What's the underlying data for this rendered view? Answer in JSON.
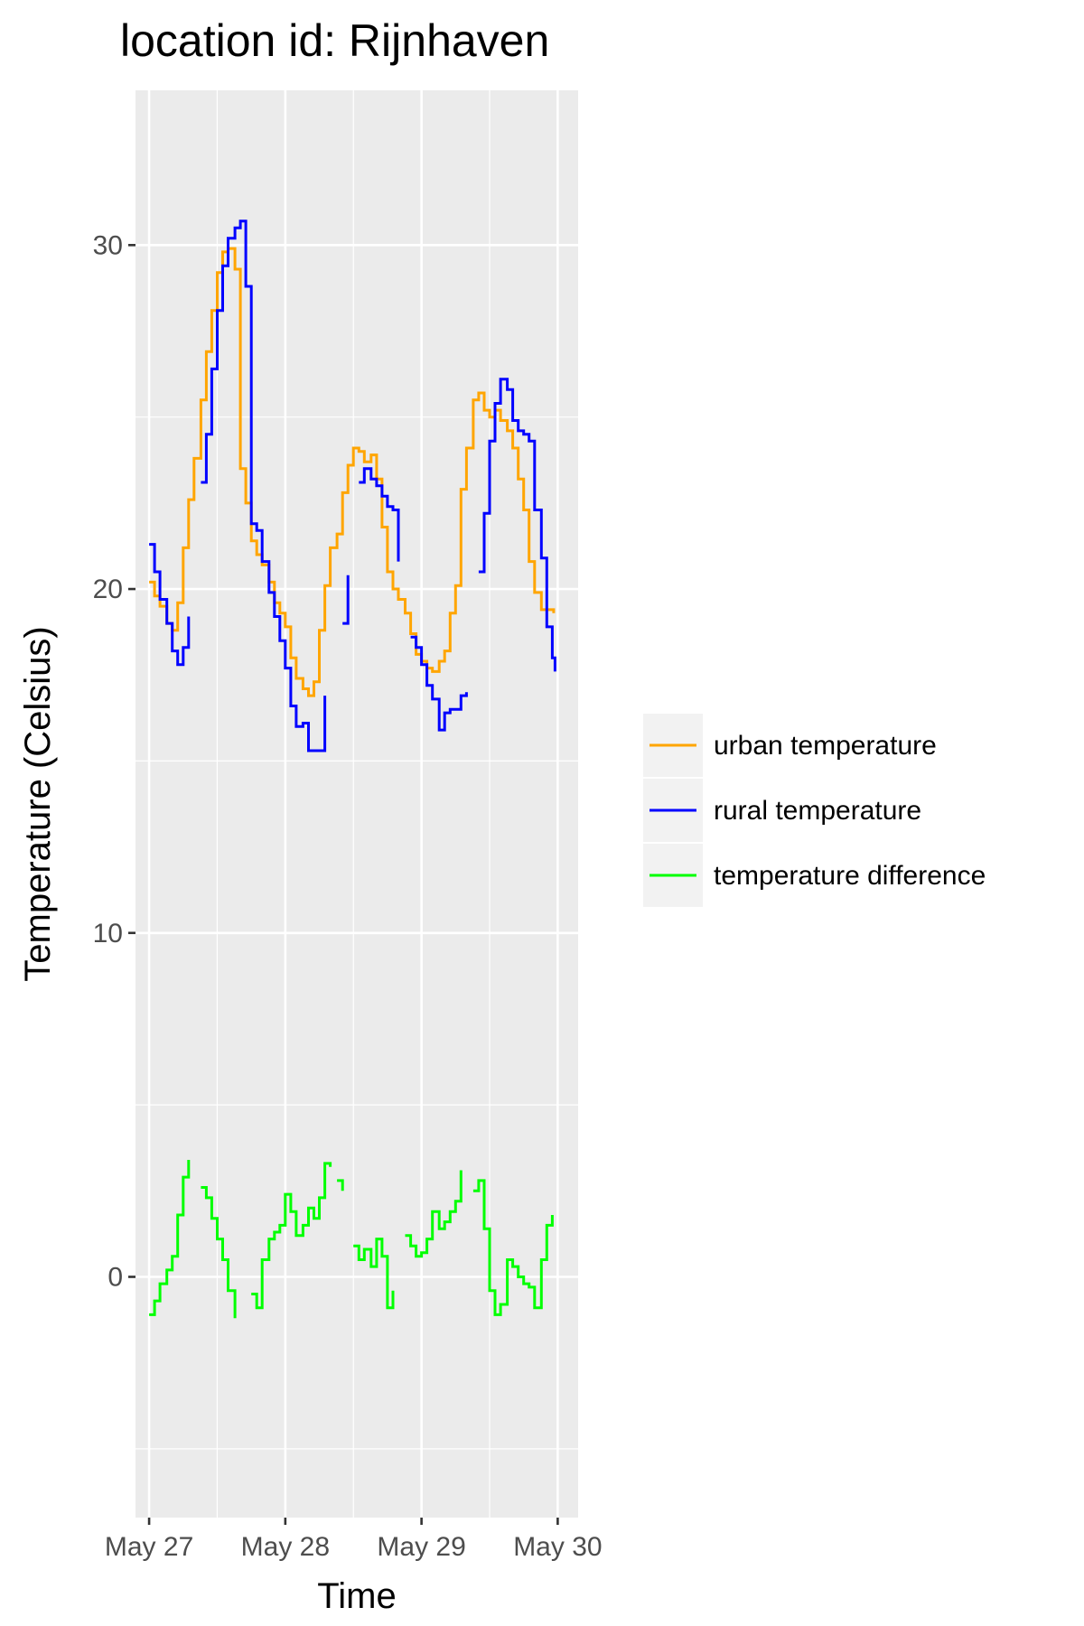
{
  "chart_data": {
    "type": "line",
    "title": "location id: Rijnhaven",
    "xlabel": "Time",
    "ylabel": "Temperature (Celsius)",
    "x_ticks": [
      "May 27",
      "May 28",
      "May 29",
      "May 30"
    ],
    "y_ticks": [
      "0",
      "10",
      "20",
      "30"
    ],
    "xlim": [
      -0.1,
      3.15
    ],
    "ylim": [
      -7,
      34.5
    ],
    "grid": true,
    "legend_position": "right",
    "step": true,
    "series": [
      {
        "name": "urban temperature",
        "color": "#FFA500",
        "points": [
          [
            0.0,
            20.2
          ],
          [
            0.04,
            19.8
          ],
          [
            0.08,
            19.5
          ],
          [
            0.13,
            19.0
          ],
          [
            0.17,
            18.8
          ],
          [
            0.21,
            19.6
          ],
          [
            0.25,
            21.2
          ],
          [
            0.29,
            22.6
          ],
          [
            0.33,
            23.8
          ],
          [
            0.38,
            25.5
          ],
          [
            0.42,
            26.9
          ],
          [
            0.46,
            28.1
          ],
          [
            0.5,
            29.2
          ],
          [
            0.54,
            29.8
          ],
          [
            0.58,
            29.9
          ],
          [
            0.63,
            29.3
          ],
          [
            0.67,
            23.5
          ],
          [
            0.71,
            22.5
          ],
          [
            0.75,
            21.4
          ],
          [
            0.79,
            21.0
          ],
          [
            0.83,
            20.7
          ],
          [
            0.88,
            20.2
          ],
          [
            0.92,
            19.6
          ],
          [
            0.96,
            19.3
          ],
          [
            1.0,
            18.9
          ],
          [
            1.04,
            18.0
          ],
          [
            1.08,
            17.4
          ],
          [
            1.13,
            17.1
          ],
          [
            1.17,
            16.9
          ],
          [
            1.21,
            17.3
          ],
          [
            1.25,
            18.8
          ],
          [
            1.29,
            20.1
          ],
          [
            1.33,
            21.2
          ],
          [
            1.38,
            21.6
          ],
          [
            1.42,
            22.8
          ],
          [
            1.46,
            23.6
          ],
          [
            1.5,
            24.1
          ],
          [
            1.54,
            24.0
          ],
          [
            1.58,
            23.7
          ],
          [
            1.63,
            23.9
          ],
          [
            1.67,
            23.2
          ],
          [
            1.71,
            21.8
          ],
          [
            1.75,
            20.5
          ],
          [
            1.79,
            20.0
          ],
          [
            1.83,
            19.7
          ],
          [
            1.88,
            19.3
          ],
          [
            1.92,
            18.7
          ],
          [
            1.96,
            18.1
          ],
          [
            2.0,
            17.9
          ],
          [
            2.04,
            17.7
          ],
          [
            2.08,
            17.6
          ],
          [
            2.13,
            17.9
          ],
          [
            2.17,
            18.2
          ],
          [
            2.21,
            19.3
          ],
          [
            2.25,
            20.1
          ],
          [
            2.29,
            22.9
          ],
          [
            2.33,
            24.1
          ],
          [
            2.38,
            25.5
          ],
          [
            2.42,
            25.7
          ],
          [
            2.46,
            25.2
          ],
          [
            2.5,
            25.0
          ],
          [
            2.54,
            25.2
          ],
          [
            2.58,
            24.9
          ],
          [
            2.63,
            24.6
          ],
          [
            2.67,
            24.1
          ],
          [
            2.71,
            23.2
          ],
          [
            2.75,
            22.3
          ],
          [
            2.79,
            20.8
          ],
          [
            2.83,
            19.9
          ],
          [
            2.88,
            19.4
          ],
          [
            2.92,
            19.4
          ],
          [
            2.97,
            19.3
          ]
        ]
      },
      {
        "name": "rural temperature",
        "color": "#0000FF",
        "points": [
          [
            0.0,
            21.3
          ],
          [
            0.04,
            20.5
          ],
          [
            0.08,
            19.7
          ],
          [
            0.13,
            19.0
          ],
          [
            0.17,
            18.2
          ],
          [
            0.21,
            17.8
          ],
          [
            0.25,
            18.3
          ],
          [
            0.29,
            19.2
          ],
          null,
          [
            0.38,
            23.1
          ],
          [
            0.42,
            24.5
          ],
          [
            0.46,
            26.4
          ],
          [
            0.5,
            28.1
          ],
          [
            0.54,
            29.4
          ],
          [
            0.58,
            30.2
          ],
          [
            0.63,
            30.5
          ],
          [
            0.67,
            30.7
          ],
          [
            0.71,
            28.8
          ],
          [
            0.75,
            21.9
          ],
          [
            0.79,
            21.7
          ],
          [
            0.83,
            20.8
          ],
          [
            0.88,
            19.9
          ],
          [
            0.92,
            19.2
          ],
          [
            0.96,
            18.5
          ],
          [
            1.0,
            17.7
          ],
          [
            1.04,
            16.6
          ],
          [
            1.08,
            16.0
          ],
          [
            1.13,
            16.1
          ],
          [
            1.17,
            15.3
          ],
          [
            1.21,
            15.3
          ],
          [
            1.25,
            15.3
          ],
          [
            1.29,
            16.9
          ],
          null,
          [
            1.42,
            19.0
          ],
          [
            1.46,
            20.4
          ],
          null,
          [
            1.54,
            23.1
          ],
          [
            1.58,
            23.5
          ],
          [
            1.63,
            23.2
          ],
          [
            1.67,
            23.0
          ],
          [
            1.71,
            22.7
          ],
          [
            1.75,
            22.4
          ],
          [
            1.79,
            22.3
          ],
          [
            1.83,
            20.8
          ],
          null,
          [
            1.92,
            18.6
          ],
          [
            1.96,
            18.3
          ],
          [
            2.0,
            17.8
          ],
          [
            2.04,
            17.2
          ],
          [
            2.08,
            16.8
          ],
          [
            2.13,
            15.9
          ],
          [
            2.17,
            16.4
          ],
          [
            2.21,
            16.5
          ],
          [
            2.25,
            16.5
          ],
          [
            2.29,
            16.9
          ],
          [
            2.33,
            17.0
          ],
          null,
          [
            2.42,
            20.5
          ],
          [
            2.46,
            22.2
          ],
          [
            2.5,
            24.3
          ],
          [
            2.54,
            25.4
          ],
          [
            2.58,
            26.1
          ],
          [
            2.63,
            25.8
          ],
          [
            2.67,
            24.9
          ],
          [
            2.71,
            24.6
          ],
          [
            2.75,
            24.5
          ],
          [
            2.79,
            24.3
          ],
          [
            2.83,
            22.3
          ],
          [
            2.88,
            20.9
          ],
          [
            2.92,
            18.9
          ],
          [
            2.96,
            18.0
          ],
          [
            2.98,
            17.6
          ]
        ]
      },
      {
        "name": "temperature difference",
        "color": "#00FF00",
        "points": [
          [
            0.0,
            -1.1
          ],
          [
            0.04,
            -0.7
          ],
          [
            0.08,
            -0.2
          ],
          [
            0.13,
            0.2
          ],
          [
            0.17,
            0.6
          ],
          [
            0.21,
            1.8
          ],
          [
            0.25,
            2.9
          ],
          [
            0.29,
            3.4
          ],
          null,
          [
            0.38,
            2.6
          ],
          [
            0.42,
            2.3
          ],
          [
            0.46,
            1.7
          ],
          [
            0.5,
            1.1
          ],
          [
            0.54,
            0.5
          ],
          [
            0.58,
            -0.4
          ],
          [
            0.63,
            -1.2
          ],
          null,
          [
            0.75,
            -0.5
          ],
          [
            0.79,
            -0.9
          ],
          [
            0.83,
            0.5
          ],
          [
            0.88,
            1.1
          ],
          [
            0.92,
            1.3
          ],
          [
            0.96,
            1.5
          ],
          [
            1.0,
            2.4
          ],
          [
            1.04,
            1.9
          ],
          [
            1.08,
            1.2
          ],
          [
            1.13,
            1.5
          ],
          [
            1.17,
            2.0
          ],
          [
            1.21,
            1.7
          ],
          [
            1.25,
            2.3
          ],
          [
            1.29,
            3.3
          ],
          [
            1.33,
            3.2
          ],
          null,
          [
            1.38,
            2.8
          ],
          [
            1.42,
            2.5
          ],
          null,
          [
            1.5,
            0.9
          ],
          [
            1.54,
            0.5
          ],
          [
            1.58,
            0.8
          ],
          [
            1.63,
            0.3
          ],
          [
            1.67,
            1.1
          ],
          [
            1.71,
            0.6
          ],
          [
            1.75,
            -0.9
          ],
          [
            1.79,
            -0.4
          ],
          null,
          [
            1.88,
            1.2
          ],
          [
            1.92,
            0.9
          ],
          [
            1.96,
            0.6
          ],
          [
            2.0,
            0.7
          ],
          [
            2.04,
            1.1
          ],
          [
            2.08,
            1.9
          ],
          [
            2.13,
            1.4
          ],
          [
            2.17,
            1.6
          ],
          [
            2.21,
            1.9
          ],
          [
            2.25,
            2.2
          ],
          [
            2.29,
            3.1
          ],
          null,
          [
            2.38,
            2.5
          ],
          [
            2.42,
            2.8
          ],
          [
            2.46,
            1.4
          ],
          [
            2.5,
            -0.4
          ],
          [
            2.54,
            -1.1
          ],
          [
            2.58,
            -0.8
          ],
          [
            2.63,
            0.5
          ],
          [
            2.67,
            0.3
          ],
          [
            2.71,
            0.0
          ],
          [
            2.75,
            -0.2
          ],
          [
            2.79,
            -0.3
          ],
          [
            2.83,
            -0.9
          ],
          [
            2.88,
            0.5
          ],
          [
            2.92,
            1.5
          ],
          [
            2.96,
            1.8
          ]
        ]
      }
    ]
  }
}
